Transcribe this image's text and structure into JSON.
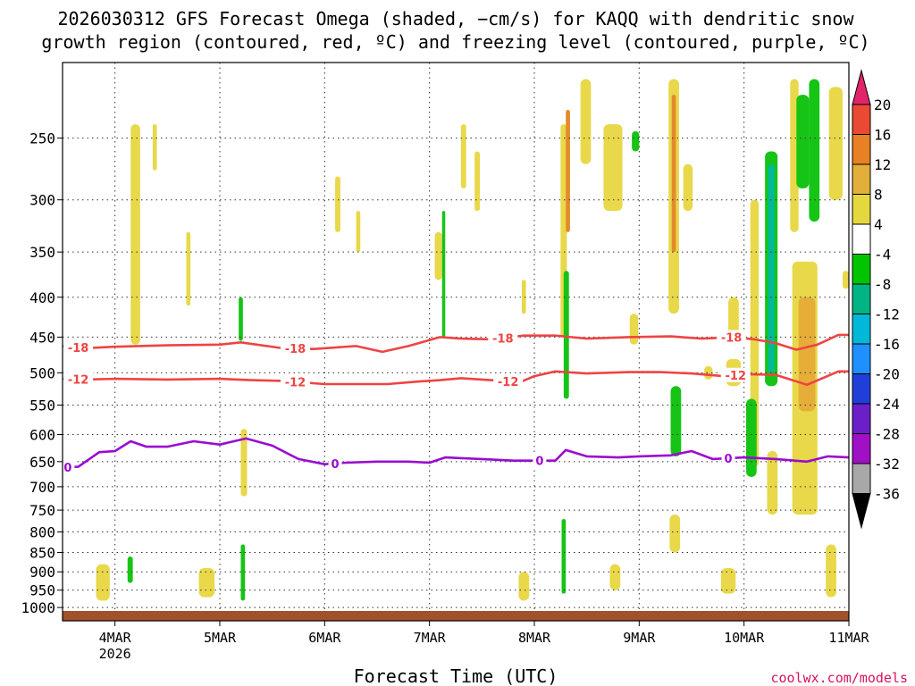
{
  "chart_data": {
    "type": "contour",
    "title_lines": [
      "2026030312 GFS Forecast Omega (shaded, −cm/s) for KAQQ with dendritic snow",
      "growth region (contoured, red, ºC) and freezing level (contoured, purple, ºC)"
    ],
    "xlabel": "Forecast Time (UTC)",
    "x_range_days": [
      3.5,
      11.0
    ],
    "x_ticks": [
      {
        "day": 4,
        "label": "4MAR",
        "sub": "2026"
      },
      {
        "day": 5,
        "label": "5MAR",
        "sub": ""
      },
      {
        "day": 6,
        "label": "6MAR",
        "sub": ""
      },
      {
        "day": 7,
        "label": "7MAR",
        "sub": ""
      },
      {
        "day": 8,
        "label": "8MAR",
        "sub": ""
      },
      {
        "day": 9,
        "label": "9MAR",
        "sub": ""
      },
      {
        "day": 10,
        "label": "10MAR",
        "sub": ""
      },
      {
        "day": 11,
        "label": "11MAR",
        "sub": ""
      }
    ],
    "y_axis": "pressure (hPa), log scale, inverted",
    "y_range": [
      200,
      1040
    ],
    "y_ticks": [
      250,
      300,
      350,
      400,
      450,
      500,
      550,
      600,
      650,
      700,
      750,
      800,
      850,
      900,
      950,
      1000
    ],
    "colorbar": {
      "levels": [
        20,
        16,
        12,
        8,
        4,
        -4,
        -8,
        -12,
        -16,
        -20,
        -24,
        -28,
        -32,
        -36
      ],
      "colors": [
        "#e2246b",
        "#ea4a34",
        "#e88024",
        "#e2b03a",
        "#e5d83e",
        "#ffffff",
        "#00c400",
        "#00b484",
        "#00b8d8",
        "#1e90ff",
        "#1f3fd8",
        "#6a1fc8",
        "#a010c4",
        "#a8a8a8",
        "#000000"
      ]
    },
    "contours": [
      {
        "name": "dgz-top",
        "label": "-18",
        "color": "#ee4444",
        "points": [
          [
            3.5,
            462
          ],
          [
            3.7,
            465
          ],
          [
            4.0,
            463
          ],
          [
            4.5,
            461
          ],
          [
            5.0,
            460
          ],
          [
            5.2,
            457
          ],
          [
            5.6,
            465
          ],
          [
            5.9,
            466
          ],
          [
            6.3,
            462
          ],
          [
            6.55,
            470
          ],
          [
            6.8,
            462
          ],
          [
            7.1,
            450
          ],
          [
            7.3,
            452
          ],
          [
            7.6,
            453
          ],
          [
            7.9,
            448
          ],
          [
            8.2,
            448
          ],
          [
            8.5,
            452
          ],
          [
            8.9,
            450
          ],
          [
            9.3,
            449
          ],
          [
            9.6,
            452
          ],
          [
            9.9,
            450
          ],
          [
            10.1,
            453
          ],
          [
            10.3,
            458
          ],
          [
            10.5,
            467
          ],
          [
            10.7,
            460
          ],
          [
            10.9,
            447
          ],
          [
            11.0,
            447
          ]
        ],
        "label_days": [
          3.65,
          5.72,
          7.7,
          9.88
        ]
      },
      {
        "name": "dgz-bottom",
        "label": "-12",
        "color": "#ee4444",
        "points": [
          [
            3.5,
            509
          ],
          [
            3.7,
            510
          ],
          [
            4.0,
            509
          ],
          [
            4.5,
            510
          ],
          [
            5.0,
            509
          ],
          [
            5.3,
            511
          ],
          [
            5.6,
            512
          ],
          [
            6.0,
            517
          ],
          [
            6.3,
            517
          ],
          [
            6.6,
            517
          ],
          [
            6.9,
            513
          ],
          [
            7.1,
            511
          ],
          [
            7.3,
            508
          ],
          [
            7.7,
            512
          ],
          [
            7.85,
            515
          ],
          [
            8.0,
            505
          ],
          [
            8.2,
            498
          ],
          [
            8.5,
            501
          ],
          [
            8.9,
            499
          ],
          [
            9.2,
            499
          ],
          [
            9.5,
            501
          ],
          [
            9.8,
            505
          ],
          [
            10.0,
            502
          ],
          [
            10.3,
            503
          ],
          [
            10.6,
            518
          ],
          [
            10.9,
            498
          ],
          [
            11.0,
            498
          ]
        ],
        "label_days": [
          3.65,
          5.72,
          7.75,
          9.92
        ]
      },
      {
        "name": "freezing-level",
        "label": "0",
        "color": "#9a0cd0",
        "points": [
          [
            3.5,
            661
          ],
          [
            3.65,
            660
          ],
          [
            3.85,
            632
          ],
          [
            4.0,
            630
          ],
          [
            4.15,
            612
          ],
          [
            4.3,
            622
          ],
          [
            4.5,
            622
          ],
          [
            4.75,
            612
          ],
          [
            5.0,
            618
          ],
          [
            5.25,
            607
          ],
          [
            5.5,
            620
          ],
          [
            5.75,
            645
          ],
          [
            6.0,
            655
          ],
          [
            6.2,
            652
          ],
          [
            6.5,
            650
          ],
          [
            6.8,
            650
          ],
          [
            7.0,
            652
          ],
          [
            7.15,
            642
          ],
          [
            7.5,
            645
          ],
          [
            7.8,
            648
          ],
          [
            8.0,
            648
          ],
          [
            8.2,
            648
          ],
          [
            8.3,
            628
          ],
          [
            8.5,
            640
          ],
          [
            8.8,
            642
          ],
          [
            9.0,
            640
          ],
          [
            9.3,
            638
          ],
          [
            9.5,
            630
          ],
          [
            9.7,
            645
          ],
          [
            10.0,
            642
          ],
          [
            10.3,
            645
          ],
          [
            10.6,
            650
          ],
          [
            10.8,
            640
          ],
          [
            11.0,
            642
          ]
        ],
        "label_days": [
          3.55,
          6.1,
          8.05,
          9.85
        ]
      }
    ],
    "terrain_color": "#a0522d",
    "shaded_cells_note": "upward (yellow/orange) and downward (green/cyan) omega patches",
    "patches": [
      {
        "d0": 4.15,
        "d1": 4.24,
        "p0": 240,
        "p1": 460,
        "level": 4
      },
      {
        "d0": 4.36,
        "d1": 4.4,
        "p0": 240,
        "p1": 275,
        "level": 4
      },
      {
        "d0": 4.68,
        "d1": 4.72,
        "p0": 330,
        "p1": 410,
        "level": 4
      },
      {
        "d0": 5.18,
        "d1": 5.22,
        "p0": 400,
        "p1": 455,
        "level": -8
      },
      {
        "d0": 3.82,
        "d1": 3.95,
        "p0": 880,
        "p1": 980,
        "level": 4
      },
      {
        "d0": 4.12,
        "d1": 4.17,
        "p0": 860,
        "p1": 930,
        "level": -8
      },
      {
        "d0": 4.8,
        "d1": 4.95,
        "p0": 890,
        "p1": 970,
        "level": 4
      },
      {
        "d0": 5.2,
        "d1": 5.24,
        "p0": 830,
        "p1": 980,
        "level": -8
      },
      {
        "d0": 5.2,
        "d1": 5.26,
        "p0": 590,
        "p1": 720,
        "level": 4
      },
      {
        "d0": 6.1,
        "d1": 6.15,
        "p0": 280,
        "p1": 330,
        "level": 4
      },
      {
        "d0": 6.3,
        "d1": 6.34,
        "p0": 310,
        "p1": 350,
        "level": 4
      },
      {
        "d0": 7.05,
        "d1": 7.12,
        "p0": 330,
        "p1": 380,
        "level": 4
      },
      {
        "d0": 7.12,
        "d1": 7.15,
        "p0": 310,
        "p1": 450,
        "level": -8
      },
      {
        "d0": 7.3,
        "d1": 7.35,
        "p0": 240,
        "p1": 290,
        "level": 4
      },
      {
        "d0": 7.43,
        "d1": 7.48,
        "p0": 260,
        "p1": 310,
        "level": 4
      },
      {
        "d0": 7.88,
        "d1": 7.92,
        "p0": 380,
        "p1": 420,
        "level": 4
      },
      {
        "d0": 8.25,
        "d1": 8.31,
        "p0": 240,
        "p1": 450,
        "level": 4
      },
      {
        "d0": 8.28,
        "d1": 8.33,
        "p0": 370,
        "p1": 540,
        "level": -8
      },
      {
        "d0": 8.3,
        "d1": 8.34,
        "p0": 230,
        "p1": 330,
        "level": 12
      },
      {
        "d0": 8.44,
        "d1": 8.54,
        "p0": 210,
        "p1": 270,
        "level": 4
      },
      {
        "d0": 8.66,
        "d1": 8.84,
        "p0": 240,
        "p1": 310,
        "level": 4
      },
      {
        "d0": 8.93,
        "d1": 9.0,
        "p0": 245,
        "p1": 260,
        "level": -8
      },
      {
        "d0": 8.91,
        "d1": 8.99,
        "p0": 420,
        "p1": 460,
        "level": 4
      },
      {
        "d0": 9.28,
        "d1": 9.38,
        "p0": 210,
        "p1": 420,
        "level": 4
      },
      {
        "d0": 9.31,
        "d1": 9.35,
        "p0": 220,
        "p1": 350,
        "level": 12
      },
      {
        "d0": 9.42,
        "d1": 9.51,
        "p0": 270,
        "p1": 310,
        "level": 4
      },
      {
        "d0": 9.3,
        "d1": 9.4,
        "p0": 520,
        "p1": 640,
        "level": -8
      },
      {
        "d0": 9.29,
        "d1": 9.39,
        "p0": 760,
        "p1": 850,
        "level": 4
      },
      {
        "d0": 8.72,
        "d1": 8.82,
        "p0": 880,
        "p1": 950,
        "level": 4
      },
      {
        "d0": 7.85,
        "d1": 7.95,
        "p0": 900,
        "p1": 980,
        "level": 4
      },
      {
        "d0": 8.26,
        "d1": 8.3,
        "p0": 770,
        "p1": 960,
        "level": -8
      },
      {
        "d0": 9.62,
        "d1": 9.7,
        "p0": 490,
        "p1": 510,
        "level": 4
      },
      {
        "d0": 9.85,
        "d1": 9.95,
        "p0": 400,
        "p1": 460,
        "level": 4
      },
      {
        "d0": 9.83,
        "d1": 9.97,
        "p0": 480,
        "p1": 520,
        "level": 4
      },
      {
        "d0": 9.78,
        "d1": 9.92,
        "p0": 890,
        "p1": 960,
        "level": 4
      },
      {
        "d0": 10.06,
        "d1": 10.14,
        "p0": 300,
        "p1": 660,
        "level": 4
      },
      {
        "d0": 10.02,
        "d1": 10.12,
        "p0": 540,
        "p1": 680,
        "level": -8
      },
      {
        "d0": 10.2,
        "d1": 10.32,
        "p0": 260,
        "p1": 520,
        "level": -8
      },
      {
        "d0": 10.23,
        "d1": 10.29,
        "p0": 270,
        "p1": 500,
        "level": -12
      },
      {
        "d0": 10.22,
        "d1": 10.32,
        "p0": 630,
        "p1": 760,
        "level": 4
      },
      {
        "d0": 10.44,
        "d1": 10.52,
        "p0": 210,
        "p1": 330,
        "level": 4
      },
      {
        "d0": 10.46,
        "d1": 10.7,
        "p0": 360,
        "p1": 760,
        "level": 4
      },
      {
        "d0": 10.52,
        "d1": 10.68,
        "p0": 400,
        "p1": 560,
        "level": 8
      },
      {
        "d0": 10.5,
        "d1": 10.62,
        "p0": 220,
        "p1": 290,
        "level": -8
      },
      {
        "d0": 10.62,
        "d1": 10.72,
        "p0": 210,
        "p1": 320,
        "level": -8
      },
      {
        "d0": 10.81,
        "d1": 10.94,
        "p0": 215,
        "p1": 300,
        "level": 4
      },
      {
        "d0": 10.78,
        "d1": 10.88,
        "p0": 830,
        "p1": 970,
        "level": 4
      },
      {
        "d0": 10.94,
        "d1": 11.0,
        "p0": 370,
        "p1": 390,
        "level": 4
      }
    ]
  },
  "credit": "coolwx.com/models"
}
